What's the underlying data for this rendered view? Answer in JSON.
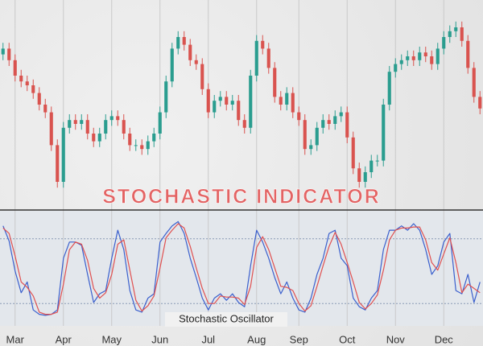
{
  "chart_data": [
    {
      "type": "candlestick",
      "title": "STOCHASTIC INDICATOR",
      "x": [
        0,
        1,
        2,
        3,
        4,
        5,
        6,
        7,
        8,
        9,
        10,
        11,
        12,
        13,
        14,
        15,
        16,
        17,
        18,
        19,
        20,
        21,
        22,
        23,
        24,
        25,
        26,
        27,
        28,
        29,
        30,
        31,
        32,
        33,
        34,
        35,
        36,
        37,
        38,
        39,
        40,
        41,
        42,
        43,
        44,
        45,
        46,
        47,
        48,
        49,
        50,
        51,
        52,
        53,
        54,
        55,
        56,
        57,
        58,
        59,
        60,
        61,
        62,
        63,
        64,
        65,
        66,
        67,
        68,
        69,
        70,
        71,
        72,
        73,
        74,
        75,
        76,
        77,
        78,
        79
      ],
      "open": [
        76,
        79,
        73,
        65,
        62,
        60,
        56,
        50,
        46,
        29,
        10,
        38,
        42,
        40,
        42,
        35,
        31,
        35,
        42,
        44,
        42,
        35,
        29,
        29,
        27,
        31,
        35,
        46,
        62,
        79,
        85,
        81,
        73,
        71,
        58,
        46,
        52,
        54,
        50,
        52,
        42,
        38,
        65,
        83,
        79,
        69,
        54,
        50,
        56,
        46,
        42,
        27,
        29,
        38,
        42,
        40,
        44,
        46,
        33,
        17,
        10,
        15,
        21,
        21,
        50,
        67,
        71,
        73,
        75,
        73,
        77,
        75,
        71,
        79,
        85,
        88,
        90,
        83,
        69,
        54
      ],
      "high": [
        82,
        82,
        76,
        68,
        65,
        63,
        59,
        53,
        49,
        32,
        41,
        45,
        45,
        45,
        45,
        38,
        38,
        45,
        47,
        47,
        45,
        38,
        32,
        32,
        34,
        38,
        49,
        65,
        82,
        88,
        88,
        84,
        76,
        74,
        61,
        55,
        57,
        57,
        55,
        55,
        45,
        68,
        86,
        86,
        82,
        72,
        57,
        59,
        59,
        49,
        45,
        32,
        41,
        45,
        45,
        47,
        49,
        49,
        36,
        20,
        18,
        24,
        24,
        53,
        70,
        74,
        76,
        78,
        78,
        80,
        80,
        78,
        82,
        88,
        91,
        93,
        93,
        86,
        72,
        57
      ],
      "low": [
        73,
        70,
        62,
        59,
        57,
        53,
        47,
        43,
        26,
        7,
        7,
        35,
        37,
        37,
        32,
        28,
        28,
        32,
        39,
        39,
        32,
        26,
        26,
        24,
        24,
        28,
        32,
        43,
        59,
        76,
        78,
        70,
        68,
        55,
        43,
        43,
        49,
        47,
        47,
        39,
        35,
        35,
        62,
        76,
        66,
        51,
        47,
        47,
        43,
        39,
        24,
        24,
        26,
        35,
        37,
        37,
        41,
        30,
        14,
        7,
        7,
        12,
        18,
        18,
        47,
        64,
        68,
        70,
        70,
        70,
        72,
        68,
        68,
        76,
        82,
        85,
        80,
        66,
        51,
        45
      ],
      "close": [
        79,
        73,
        65,
        62,
        60,
        56,
        50,
        46,
        29,
        10,
        38,
        42,
        40,
        42,
        35,
        31,
        35,
        42,
        44,
        42,
        35,
        29,
        29,
        27,
        31,
        35,
        46,
        62,
        79,
        85,
        81,
        73,
        71,
        58,
        46,
        52,
        54,
        50,
        52,
        42,
        38,
        65,
        83,
        79,
        69,
        54,
        50,
        56,
        46,
        42,
        27,
        29,
        38,
        42,
        40,
        44,
        46,
        33,
        17,
        10,
        15,
        21,
        21,
        50,
        67,
        71,
        73,
        75,
        73,
        77,
        75,
        71,
        79,
        85,
        88,
        90,
        83,
        69,
        54,
        48
      ],
      "xlim": [
        -0.5,
        79.5
      ],
      "ylim": [
        0,
        100
      ],
      "up_color": "#2a9d8f",
      "down_color": "#d9534f"
    },
    {
      "type": "line",
      "title": "Stochastic Oscillator",
      "x": [
        0,
        1,
        2,
        3,
        4,
        5,
        6,
        7,
        8,
        9,
        10,
        11,
        12,
        13,
        14,
        15,
        16,
        17,
        18,
        19,
        20,
        21,
        22,
        23,
        24,
        25,
        26,
        27,
        28,
        29,
        30,
        31,
        32,
        33,
        34,
        35,
        36,
        37,
        38,
        39,
        40,
        41,
        42,
        43,
        44,
        45,
        46,
        47,
        48,
        49,
        50,
        51,
        52,
        53,
        54,
        55,
        56,
        57,
        58,
        59,
        60,
        61,
        62,
        63,
        64,
        65,
        66,
        67,
        68,
        69,
        70,
        71,
        72,
        73,
        74,
        75,
        76,
        77,
        78,
        79
      ],
      "series": [
        {
          "color": "#3a5fcd",
          "values": [
            92,
            78,
            50,
            30,
            40,
            14,
            10,
            9,
            10,
            14,
            62,
            77,
            77,
            74,
            47,
            21,
            29,
            32,
            62,
            88,
            70,
            32,
            14,
            12,
            25,
            29,
            77,
            85,
            92,
            96,
            85,
            62,
            44,
            25,
            14,
            25,
            29,
            23,
            29,
            21,
            17,
            55,
            88,
            77,
            62,
            44,
            29,
            40,
            25,
            14,
            12,
            25,
            47,
            62,
            85,
            88,
            62,
            55,
            25,
            17,
            14,
            25,
            32,
            70,
            88,
            88,
            92,
            88,
            94,
            88,
            70,
            47,
            55,
            77,
            85,
            32,
            29,
            47,
            21,
            40
          ]
        },
        {
          "color": "#e05050",
          "values": [
            90,
            85,
            64,
            40,
            35,
            27,
            12,
            10,
            10,
            12,
            38,
            70,
            77,
            75,
            60,
            34,
            25,
            30,
            47,
            75,
            79,
            51,
            23,
            13,
            18,
            27,
            53,
            81,
            88,
            94,
            90,
            73,
            53,
            34,
            20,
            20,
            27,
            26,
            26,
            25,
            19,
            36,
            72,
            82,
            70,
            53,
            36,
            35,
            32,
            20,
            13,
            18,
            36,
            55,
            73,
            86,
            75,
            58,
            40,
            21,
            15,
            20,
            28,
            51,
            79,
            88,
            90,
            90,
            91,
            91,
            79,
            58,
            51,
            66,
            81,
            58,
            30,
            38,
            34,
            30
          ]
        }
      ],
      "xlim": [
        -0.5,
        79.5
      ],
      "ylim": [
        0,
        100
      ],
      "levels": [
        80,
        20
      ],
      "xticks": [
        {
          "value": 2,
          "label": "Mar"
        },
        {
          "value": 10,
          "label": "Apr"
        },
        {
          "value": 18,
          "label": "May"
        },
        {
          "value": 26,
          "label": "Jun"
        },
        {
          "value": 34,
          "label": "Jul"
        },
        {
          "value": 42,
          "label": "Aug"
        },
        {
          "value": 49,
          "label": "Sep"
        },
        {
          "value": 57,
          "label": "Oct"
        },
        {
          "value": 65,
          "label": "Nov"
        },
        {
          "value": 73,
          "label": "Dec"
        }
      ],
      "grid": true
    }
  ]
}
